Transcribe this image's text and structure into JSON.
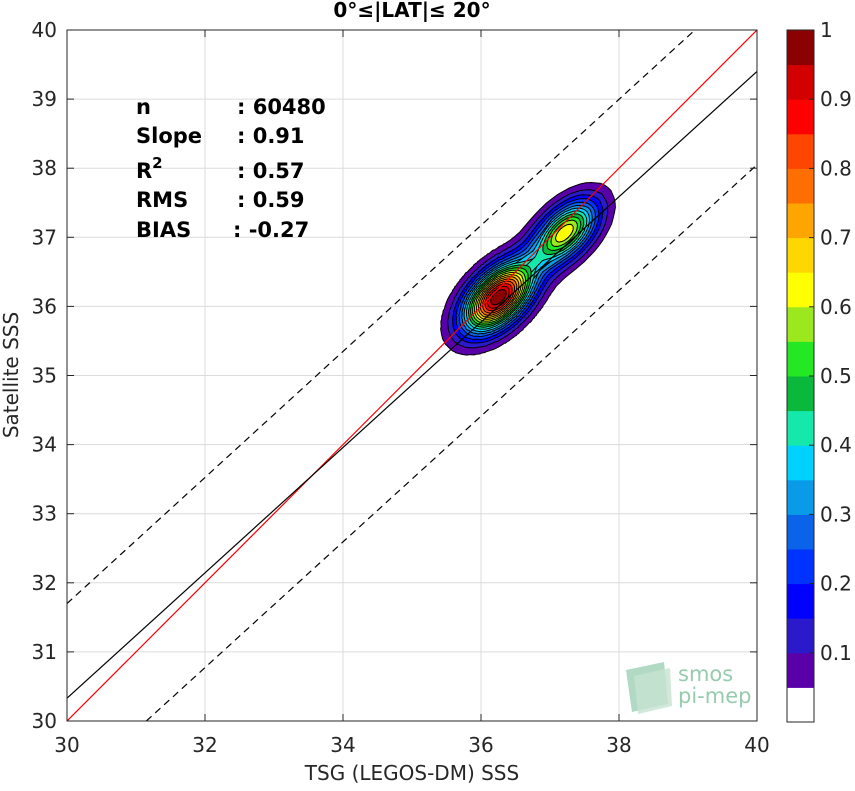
{
  "chart_data": {
    "type": "scatter",
    "title": "0°≤|LAT|≤ 20°",
    "xlabel": "TSG (LEGOS-DM) SSS",
    "ylabel": "Satellite SSS",
    "xlim": [
      30,
      40
    ],
    "ylim": [
      30,
      40
    ],
    "xticks": [
      "30",
      "32",
      "34",
      "36",
      "38",
      "40"
    ],
    "yticks": [
      "30",
      "31",
      "32",
      "33",
      "34",
      "35",
      "36",
      "37",
      "38",
      "39",
      "40"
    ],
    "grid": true,
    "stats": [
      {
        "label": "n",
        "value": ": 60480"
      },
      {
        "label": "Slope",
        "value": ": 0.91"
      },
      {
        "label": "R",
        "sup": "2",
        "value": ": 0.57"
      },
      {
        "label": "RMS",
        "value": ": 0.59"
      },
      {
        "label": "BIAS",
        "value": ": -0.27"
      }
    ],
    "lines": [
      {
        "name": "identity",
        "color": "#ff0000",
        "style": "solid",
        "points": [
          [
            30,
            30
          ],
          [
            40,
            40
          ]
        ]
      },
      {
        "name": "fit",
        "color": "#000000",
        "style": "solid",
        "points": [
          [
            30,
            30.33
          ],
          [
            40,
            39.4
          ]
        ]
      },
      {
        "name": "upper bound",
        "color": "#000000",
        "style": "dashed",
        "points": [
          [
            30,
            31.7
          ],
          [
            39.1,
            40
          ]
        ]
      },
      {
        "name": "lower bound",
        "color": "#000000",
        "style": "dashed",
        "points": [
          [
            31.15,
            30
          ],
          [
            40,
            38.05
          ]
        ]
      }
    ],
    "density": {
      "peaks": [
        {
          "x": 36.25,
          "y": 36.13,
          "density": 1.0
        },
        {
          "x": 37.22,
          "y": 37.07,
          "density": 0.64
        }
      ],
      "levels": [
        0.05,
        0.1,
        0.15,
        0.2,
        0.25,
        0.3,
        0.35,
        0.4,
        0.45,
        0.5,
        0.55,
        0.6,
        0.65,
        0.7,
        0.75,
        0.8,
        0.85,
        0.9,
        0.95
      ]
    },
    "colorbar": {
      "min": 0,
      "max": 1,
      "ticks": [
        "0.1",
        "0.2",
        "0.3",
        "0.4",
        "0.5",
        "0.6",
        "0.7",
        "0.8",
        "0.9",
        "1"
      ],
      "colors": [
        "#ffffff",
        "#5a00a8",
        "#2b1acc",
        "#0000ff",
        "#0033ff",
        "#0a63e8",
        "#0a9be8",
        "#00d2ff",
        "#14e8aa",
        "#0ab83c",
        "#23e823",
        "#9be81e",
        "#ffff00",
        "#ffd700",
        "#ffa500",
        "#ff6e00",
        "#ff4600",
        "#ff0000",
        "#d20000",
        "#8b0000"
      ]
    }
  },
  "logo": {
    "line1": "smos",
    "line2": "pi-mep"
  }
}
